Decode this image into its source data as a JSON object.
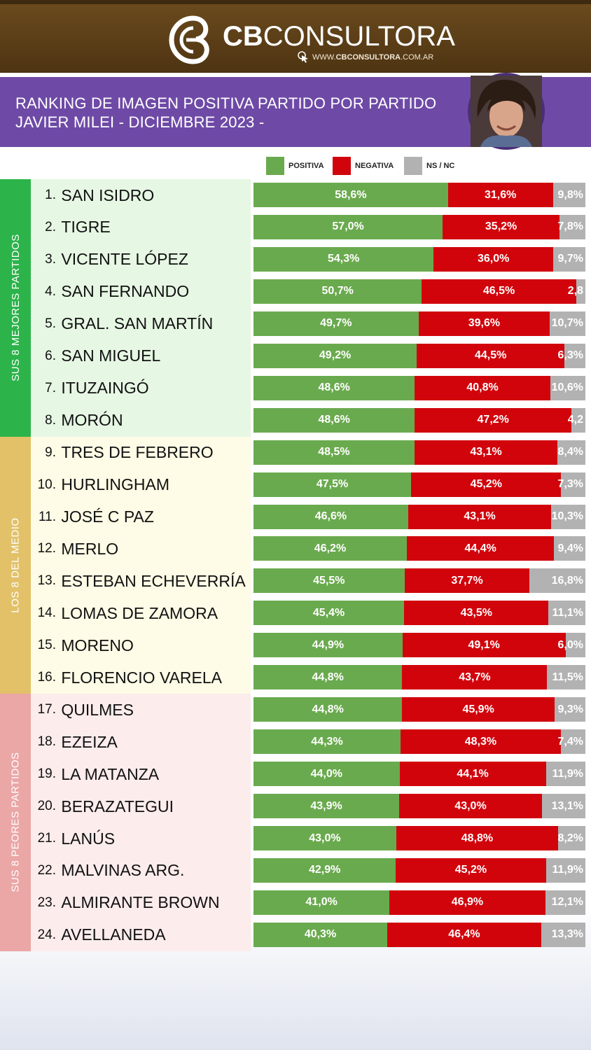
{
  "brand": {
    "bold": "CB",
    "rest": "CONSULTORA",
    "site_prefix": "WWW.",
    "site_bold": "CBCONSULTORA",
    "site_suffix": ".COM.AR"
  },
  "title": {
    "line1": "RANKING DE IMAGEN POSITIVA PARTIDO POR PARTIDO",
    "line2": "JAVIER MILEI - DICIEMBRE 2023 -"
  },
  "colors": {
    "positiva": "#6aaa4e",
    "negativa": "#d1040c",
    "nsnc": "#b2b2b2",
    "group_top": "#2cb34a",
    "group_mid": "#e2c169",
    "group_low": "#eba6a6",
    "bg_top": "#e6f7e4",
    "bg_mid": "#fefbe6",
    "bg_low": "#fcecec",
    "header": "#5a3d18",
    "title_band": "#6e4aa6"
  },
  "icons": {
    "logo": "cb-logo-icon",
    "cursor": "cursor-click-icon",
    "avatar": "person-avatar-icon"
  },
  "chart_data": {
    "type": "bar",
    "stacked": true,
    "orientation": "horizontal",
    "legend": [
      "POSITIVA",
      "NEGATIVA",
      "NS / NC"
    ],
    "legend_position": "top",
    "groups": [
      {
        "label": "SUS 8 MEJORES PARTIDOS",
        "from": 1,
        "to": 8
      },
      {
        "label": "LOS 8 DEL MEDIO",
        "from": 9,
        "to": 16
      },
      {
        "label": "SUS 8 PEORES PARTIDOS",
        "from": 17,
        "to": 24
      }
    ],
    "rows": [
      {
        "rank": "1.",
        "name": "SAN ISIDRO",
        "positiva": 58.6,
        "negativa": 31.6,
        "nsnc": 9.8,
        "labels": [
          "58,6%",
          "31,6%",
          "9,8%"
        ]
      },
      {
        "rank": "2.",
        "name": "TIGRE",
        "positiva": 57.0,
        "negativa": 35.2,
        "nsnc": 7.8,
        "labels": [
          "57,0%",
          "35,2%",
          "7,8%"
        ]
      },
      {
        "rank": "3.",
        "name": "VICENTE LÓPEZ",
        "positiva": 54.3,
        "negativa": 36.0,
        "nsnc": 9.7,
        "labels": [
          "54,3%",
          "36,0%",
          "9,7%"
        ]
      },
      {
        "rank": "4.",
        "name": "SAN FERNANDO",
        "positiva": 50.7,
        "negativa": 46.5,
        "nsnc": 2.8,
        "labels": [
          "50,7%",
          "46,5%",
          "2,8"
        ]
      },
      {
        "rank": "5.",
        "name": "GRAL. SAN MARTÍN",
        "positiva": 49.7,
        "negativa": 39.6,
        "nsnc": 10.7,
        "labels": [
          "49,7%",
          "39,6%",
          "10,7%"
        ]
      },
      {
        "rank": "6.",
        "name": "SAN MIGUEL",
        "positiva": 49.2,
        "negativa": 44.5,
        "nsnc": 6.3,
        "labels": [
          "49,2%",
          "44,5%",
          "6,3%"
        ]
      },
      {
        "rank": "7.",
        "name": "ITUZAINGÓ",
        "positiva": 48.6,
        "negativa": 40.8,
        "nsnc": 10.6,
        "labels": [
          "48,6%",
          "40,8%",
          "10,6%"
        ]
      },
      {
        "rank": "8.",
        "name": "MORÓN",
        "positiva": 48.6,
        "negativa": 47.2,
        "nsnc": 4.2,
        "labels": [
          "48,6%",
          "47,2%",
          "4,2"
        ]
      },
      {
        "rank": "9.",
        "name": "TRES DE FEBRERO",
        "positiva": 48.5,
        "negativa": 43.1,
        "nsnc": 8.4,
        "labels": [
          "48,5%",
          "43,1%",
          "8,4%"
        ]
      },
      {
        "rank": "10.",
        "name": "HURLINGHAM",
        "positiva": 47.5,
        "negativa": 45.2,
        "nsnc": 7.3,
        "labels": [
          "47,5%",
          "45,2%",
          "7,3%"
        ]
      },
      {
        "rank": "11.",
        "name": "JOSÉ C PAZ",
        "positiva": 46.6,
        "negativa": 43.1,
        "nsnc": 10.3,
        "labels": [
          "46,6%",
          "43,1%",
          "10,3%"
        ]
      },
      {
        "rank": "12.",
        "name": "MERLO",
        "positiva": 46.2,
        "negativa": 44.4,
        "nsnc": 9.4,
        "labels": [
          "46,2%",
          "44,4%",
          "9,4%"
        ]
      },
      {
        "rank": "13.",
        "name": "ESTEBAN ECHEVERRÍA",
        "positiva": 45.5,
        "negativa": 37.7,
        "nsnc": 16.8,
        "labels": [
          "45,5%",
          "37,7%",
          "16,8%"
        ]
      },
      {
        "rank": "14.",
        "name": "LOMAS DE ZAMORA",
        "positiva": 45.4,
        "negativa": 43.5,
        "nsnc": 11.1,
        "labels": [
          "45,4%",
          "43,5%",
          "11,1%"
        ]
      },
      {
        "rank": "15.",
        "name": "MORENO",
        "positiva": 44.9,
        "negativa": 49.1,
        "nsnc": 6.0,
        "labels": [
          "44,9%",
          "49,1%",
          "6,0%"
        ]
      },
      {
        "rank": "16.",
        "name": "FLORENCIO VARELA",
        "positiva": 44.8,
        "negativa": 43.7,
        "nsnc": 11.5,
        "labels": [
          "44,8%",
          "43,7%",
          "11,5%"
        ]
      },
      {
        "rank": "17.",
        "name": "QUILMES",
        "positiva": 44.8,
        "negativa": 45.9,
        "nsnc": 9.3,
        "labels": [
          "44,8%",
          "45,9%",
          "9,3%"
        ]
      },
      {
        "rank": "18.",
        "name": "EZEIZA",
        "positiva": 44.3,
        "negativa": 48.3,
        "nsnc": 7.4,
        "labels": [
          "44,3%",
          "48,3%",
          "7,4%"
        ]
      },
      {
        "rank": "19.",
        "name": "LA MATANZA",
        "positiva": 44.0,
        "negativa": 44.1,
        "nsnc": 11.9,
        "labels": [
          "44,0%",
          "44,1%",
          "11,9%"
        ]
      },
      {
        "rank": "20.",
        "name": "BERAZATEGUI",
        "positiva": 43.9,
        "negativa": 43.0,
        "nsnc": 13.1,
        "labels": [
          "43,9%",
          "43,0%",
          "13,1%"
        ]
      },
      {
        "rank": "21.",
        "name": "LANÚS",
        "positiva": 43.0,
        "negativa": 48.8,
        "nsnc": 8.2,
        "labels": [
          "43,0%",
          "48,8%",
          "8,2%"
        ]
      },
      {
        "rank": "22.",
        "name": "MALVINAS ARG.",
        "positiva": 42.9,
        "negativa": 45.2,
        "nsnc": 11.9,
        "labels": [
          "42,9%",
          "45,2%",
          "11,9%"
        ]
      },
      {
        "rank": "23.",
        "name": "ALMIRANTE BROWN",
        "positiva": 41.0,
        "negativa": 46.9,
        "nsnc": 12.1,
        "labels": [
          "41,0%",
          "46,9%",
          "12,1%"
        ]
      },
      {
        "rank": "24.",
        "name": "AVELLANEDA",
        "positiva": 40.3,
        "negativa": 46.4,
        "nsnc": 13.3,
        "labels": [
          "40,3%",
          "46,4%",
          "13,3%"
        ]
      }
    ]
  }
}
